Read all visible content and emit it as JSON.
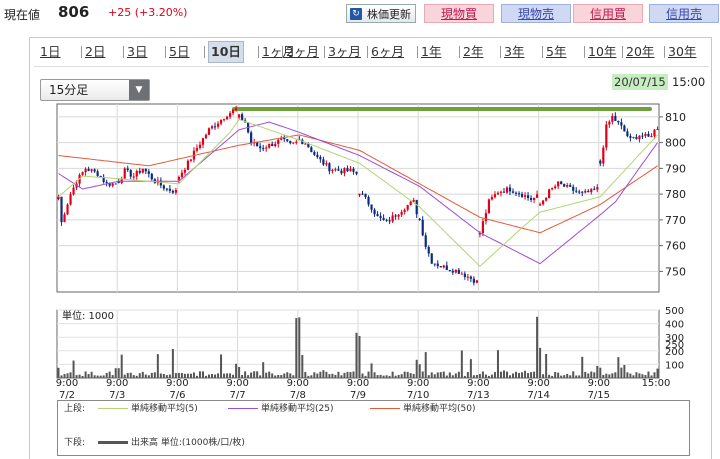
{
  "header": {
    "price_label": "現在値",
    "price": "806",
    "change": "+25 (+3.20%)",
    "refresh_label": "株価更新",
    "buttons": {
      "spot_buy": "現物買",
      "spot_sell": "現物売",
      "margin_buy": "信用買",
      "margin_sell": "信用売"
    }
  },
  "periods": [
    "1日",
    "2日",
    "3日",
    "5日",
    "10日",
    "1ヶ月",
    "2ヶ月",
    "3ヶ月",
    "6ヶ月",
    "1年",
    "2年",
    "3年",
    "5年",
    "10年",
    "20年",
    "30年"
  ],
  "active_period": "10日",
  "interval_select": "15分足",
  "date_stamp": "20/07/15",
  "time_stamp": "15:00",
  "colors": {
    "up": "#e0001b",
    "down": "#0a2b80",
    "ma5": "#b2d472",
    "ma25": "#9a4fd6",
    "ma50": "#e25a3a",
    "volume": "#555555",
    "highlight": "#6fa03c"
  },
  "chart_data": [
    {
      "type": "candlestick",
      "x_ticks": [
        "9:00\n7/2",
        "9:00\n7/3",
        "9:00\n7/6",
        "9:00\n7/7",
        "9:00\n7/8",
        "9:00\n7/9",
        "9:00\n7/10",
        "9:00\n7/13",
        "9:00\n7/14",
        "9:00\n7/15",
        "15:00"
      ],
      "y_ticks": [
        750,
        760,
        770,
        780,
        790,
        800,
        810
      ],
      "ylim": [
        742,
        815
      ],
      "sessions": [
        {
          "day": "7/2",
          "path": [
            [
              0,
              779
            ],
            [
              1,
              769
            ],
            [
              2,
              773
            ],
            [
              4,
              780
            ],
            [
              6,
              785
            ],
            [
              9,
              790
            ],
            [
              13,
              788
            ],
            [
              16,
              784
            ],
            [
              19,
              784
            ]
          ]
        },
        {
          "day": "7/3",
          "path": [
            [
              0,
              785
            ],
            [
              2,
              789
            ],
            [
              5,
              787
            ],
            [
              8,
              790
            ],
            [
              12,
              785
            ],
            [
              16,
              782
            ],
            [
              19,
              781
            ]
          ]
        },
        {
          "day": "7/6",
          "path": [
            [
              0,
              787
            ],
            [
              3,
              792
            ],
            [
              6,
              798
            ],
            [
              10,
              805
            ],
            [
              13,
              808
            ],
            [
              16,
              811
            ],
            [
              19,
              813
            ]
          ]
        },
        {
          "day": "7/7",
          "path": [
            [
              0,
              810
            ],
            [
              2,
              808
            ],
            [
              4,
              800
            ],
            [
              7,
              798
            ],
            [
              10,
              799
            ],
            [
              14,
              801
            ],
            [
              17,
              799
            ],
            [
              19,
              800
            ]
          ]
        },
        {
          "day": "7/8",
          "path": [
            [
              0,
              801
            ],
            [
              2,
              800
            ],
            [
              4,
              797
            ],
            [
              6,
              794
            ],
            [
              8,
              792
            ],
            [
              10,
              790
            ],
            [
              14,
              789
            ],
            [
              17,
              789
            ],
            [
              19,
              788
            ]
          ]
        },
        {
          "day": "7/9",
          "path": [
            [
              0,
              781
            ],
            [
              2,
              778
            ],
            [
              4,
              775
            ],
            [
              6,
              771
            ],
            [
              9,
              769
            ],
            [
              12,
              772
            ],
            [
              15,
              775
            ],
            [
              18,
              777
            ],
            [
              19,
              773
            ]
          ]
        },
        {
          "day": "7/10",
          "path": [
            [
              0,
              770
            ],
            [
              2,
              760
            ],
            [
              4,
              754
            ],
            [
              7,
              752
            ],
            [
              10,
              751
            ],
            [
              13,
              750
            ],
            [
              16,
              748
            ],
            [
              19,
              746
            ]
          ]
        },
        {
          "day": "7/13",
          "path": [
            [
              0,
              765
            ],
            [
              3,
              777
            ],
            [
              6,
              781
            ],
            [
              10,
              782
            ],
            [
              14,
              780
            ],
            [
              17,
              778
            ],
            [
              19,
              779
            ]
          ]
        },
        {
          "day": "7/14",
          "path": [
            [
              0,
              776
            ],
            [
              3,
              781
            ],
            [
              6,
              784
            ],
            [
              10,
              782
            ],
            [
              14,
              780
            ],
            [
              17,
              781
            ],
            [
              19,
              782
            ]
          ]
        },
        {
          "day": "7/15",
          "path": [
            [
              0,
              792
            ],
            [
              2,
              806
            ],
            [
              4,
              810
            ],
            [
              7,
              806
            ],
            [
              10,
              801
            ],
            [
              13,
              803
            ],
            [
              16,
              802
            ],
            [
              19,
              806
            ]
          ]
        }
      ],
      "ma5": {
        "name": "単純移動平均(5)",
        "anchors": [
          [
            0,
            779
          ],
          [
            8,
            787
          ],
          [
            20,
            786
          ],
          [
            40,
            784
          ],
          [
            57,
            804
          ],
          [
            60,
            809
          ],
          [
            80,
            801
          ],
          [
            100,
            792
          ],
          [
            120,
            775
          ],
          [
            140,
            752
          ],
          [
            155,
            768
          ],
          [
            160,
            773
          ],
          [
            180,
            779
          ],
          [
            199,
            803
          ]
        ]
      },
      "ma25": {
        "name": "単純移動平均(25)",
        "anchors": [
          [
            0,
            788
          ],
          [
            8,
            782
          ],
          [
            20,
            785
          ],
          [
            40,
            785
          ],
          [
            60,
            805
          ],
          [
            70,
            808
          ],
          [
            80,
            804
          ],
          [
            100,
            795
          ],
          [
            120,
            783
          ],
          [
            140,
            765
          ],
          [
            160,
            753
          ],
          [
            180,
            772
          ],
          [
            185,
            777
          ],
          [
            199,
            800
          ]
        ]
      },
      "ma50": {
        "name": "単純移動平均(50)",
        "anchors": [
          [
            0,
            795
          ],
          [
            30,
            791
          ],
          [
            60,
            799
          ],
          [
            80,
            803
          ],
          [
            100,
            797
          ],
          [
            120,
            784
          ],
          [
            140,
            771
          ],
          [
            160,
            765
          ],
          [
            180,
            776
          ],
          [
            199,
            791
          ]
        ]
      }
    },
    {
      "type": "bar",
      "label": "単位: 1000",
      "y_ticks": [
        100,
        200,
        250,
        300,
        400,
        500
      ],
      "ylim": [
        0,
        500
      ],
      "spikes": [
        50,
        130,
        160,
        40,
        60,
        240,
        380,
        20,
        50,
        40,
        80,
        130,
        60,
        80,
        420,
        250,
        50,
        210,
        300,
        50,
        120,
        100,
        350,
        400,
        180,
        20,
        40,
        300,
        430,
        200,
        30,
        40,
        50,
        60,
        350,
        60
      ]
    }
  ],
  "legend": {
    "upper_label": "上段:",
    "lower_label": "下段:",
    "ma5": "単純移動平均(5)",
    "ma25": "単純移動平均(25)",
    "ma50": "単純移動平均(50)",
    "volume": "出来高 単位:(1000株/口/枚)"
  }
}
